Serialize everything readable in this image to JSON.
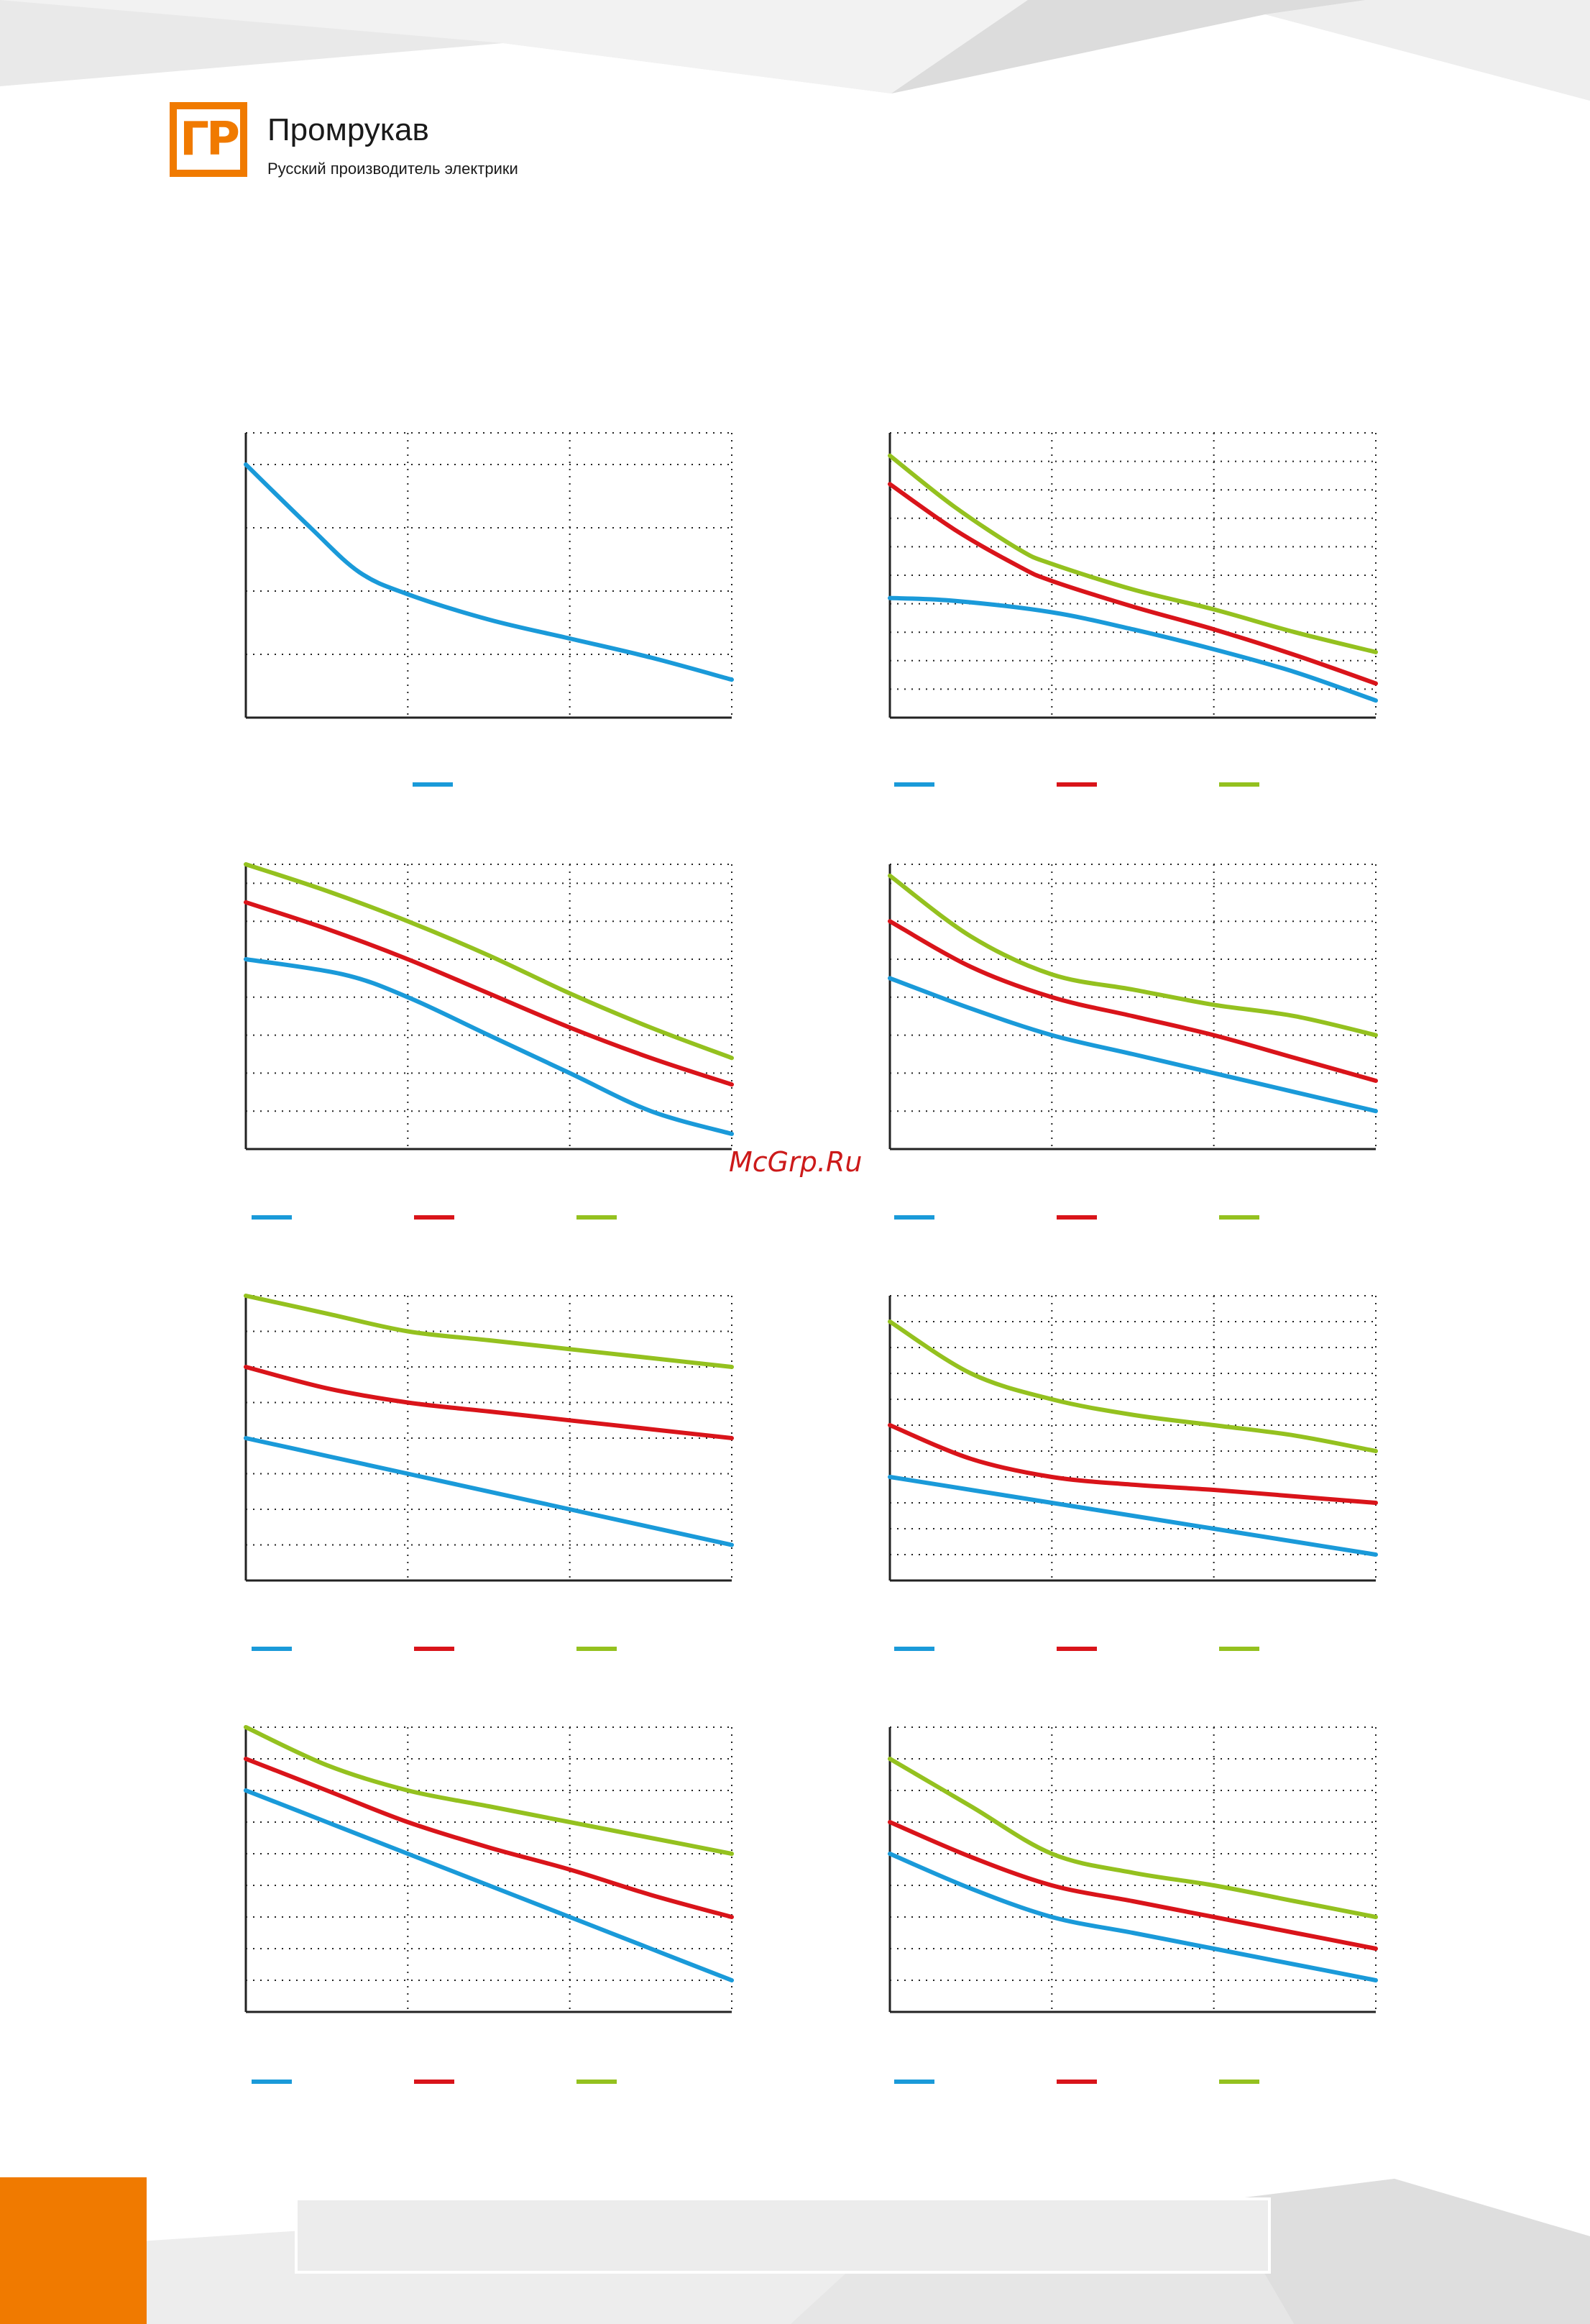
{
  "brand": {
    "logo_text": "ГР",
    "name": "Промрукав",
    "tagline": "Русский производитель электрики"
  },
  "watermark": "McGrp.Ru",
  "colors": {
    "accent": "#f07a00",
    "series_1": "#1a9ad9",
    "series_2": "#d9141a",
    "series_3": "#94c11f",
    "grid": "#222222",
    "axis": "#222222"
  },
  "chart_data": [
    {
      "type": "line",
      "ylim": [
        0,
        4.5
      ],
      "xlim": [
        0,
        3
      ],
      "grid": true,
      "legend": "bottom",
      "series": [
        {
          "color": "#1a9ad9",
          "points": [
            [
              0,
              4.0
            ],
            [
              0.4,
              3.0
            ],
            [
              0.7,
              2.3
            ],
            [
              1,
              1.95
            ],
            [
              1.5,
              1.55
            ],
            [
              2,
              1.25
            ],
            [
              2.5,
              0.95
            ],
            [
              3,
              0.6
            ]
          ]
        }
      ]
    },
    {
      "type": "line",
      "ylim": [
        0,
        10
      ],
      "xlim": [
        0,
        3
      ],
      "grid": true,
      "legend": "bottom",
      "series": [
        {
          "color": "#1a9ad9",
          "points": [
            [
              0,
              4.2
            ],
            [
              0.4,
              4.1
            ],
            [
              1,
              3.7
            ],
            [
              1.5,
              3.1
            ],
            [
              2,
              2.4
            ],
            [
              2.5,
              1.6
            ],
            [
              3,
              0.6
            ]
          ]
        },
        {
          "color": "#d9141a",
          "points": [
            [
              0,
              8.2
            ],
            [
              0.4,
              6.6
            ],
            [
              0.8,
              5.3
            ],
            [
              1,
              4.8
            ],
            [
              1.5,
              3.9
            ],
            [
              2,
              3.1
            ],
            [
              2.5,
              2.2
            ],
            [
              3,
              1.2
            ]
          ]
        },
        {
          "color": "#94c11f",
          "points": [
            [
              0,
              9.2
            ],
            [
              0.4,
              7.4
            ],
            [
              0.8,
              5.9
            ],
            [
              1,
              5.4
            ],
            [
              1.5,
              4.5
            ],
            [
              2,
              3.8
            ],
            [
              2.5,
              3.0
            ],
            [
              3,
              2.3
            ]
          ]
        }
      ]
    },
    {
      "type": "line",
      "ylim": [
        0,
        7.5
      ],
      "xlim": [
        0,
        3
      ],
      "grid": true,
      "legend": "bottom",
      "series": [
        {
          "color": "#1a9ad9",
          "points": [
            [
              0,
              5.0
            ],
            [
              0.6,
              4.6
            ],
            [
              1,
              4.0
            ],
            [
              1.5,
              3.0
            ],
            [
              2,
              2.0
            ],
            [
              2.5,
              1.0
            ],
            [
              3,
              0.4
            ]
          ]
        },
        {
          "color": "#d9141a",
          "points": [
            [
              0,
              6.5
            ],
            [
              0.5,
              5.8
            ],
            [
              1,
              5.0
            ],
            [
              1.5,
              4.1
            ],
            [
              2,
              3.2
            ],
            [
              2.5,
              2.4
            ],
            [
              3,
              1.7
            ]
          ]
        },
        {
          "color": "#94c11f",
          "points": [
            [
              0,
              7.5
            ],
            [
              0.5,
              6.8
            ],
            [
              1,
              6.0
            ],
            [
              1.5,
              5.1
            ],
            [
              2,
              4.1
            ],
            [
              2.5,
              3.2
            ],
            [
              3,
              2.4
            ]
          ]
        }
      ]
    },
    {
      "type": "line",
      "ylim": [
        0,
        7.5
      ],
      "xlim": [
        0,
        3
      ],
      "grid": true,
      "legend": "bottom",
      "series": [
        {
          "color": "#1a9ad9",
          "points": [
            [
              0,
              4.5
            ],
            [
              0.5,
              3.7
            ],
            [
              1,
              3.0
            ],
            [
              1.5,
              2.5
            ],
            [
              2,
              2.0
            ],
            [
              2.5,
              1.5
            ],
            [
              3,
              1.0
            ]
          ]
        },
        {
          "color": "#d9141a",
          "points": [
            [
              0,
              6.0
            ],
            [
              0.5,
              4.8
            ],
            [
              1,
              4.0
            ],
            [
              1.5,
              3.5
            ],
            [
              2,
              3.0
            ],
            [
              2.5,
              2.4
            ],
            [
              3,
              1.8
            ]
          ]
        },
        {
          "color": "#94c11f",
          "points": [
            [
              0,
              7.2
            ],
            [
              0.5,
              5.6
            ],
            [
              1,
              4.6
            ],
            [
              1.5,
              4.2
            ],
            [
              2,
              3.8
            ],
            [
              2.5,
              3.5
            ],
            [
              3,
              3.0
            ]
          ]
        }
      ]
    },
    {
      "type": "line",
      "ylim": [
        0,
        8
      ],
      "xlim": [
        0,
        3
      ],
      "grid": true,
      "legend": "bottom",
      "series": [
        {
          "color": "#1a9ad9",
          "points": [
            [
              0,
              4.0
            ],
            [
              0.5,
              3.5
            ],
            [
              1,
              3.0
            ],
            [
              1.5,
              2.5
            ],
            [
              2,
              2.0
            ],
            [
              2.5,
              1.5
            ],
            [
              3,
              1.0
            ]
          ]
        },
        {
          "color": "#d9141a",
          "points": [
            [
              0,
              6.0
            ],
            [
              0.5,
              5.4
            ],
            [
              1,
              5.0
            ],
            [
              1.5,
              4.75
            ],
            [
              2,
              4.5
            ],
            [
              2.5,
              4.25
            ],
            [
              3,
              4.0
            ]
          ]
        },
        {
          "color": "#94c11f",
          "points": [
            [
              0,
              8.0
            ],
            [
              0.5,
              7.5
            ],
            [
              1,
              7.0
            ],
            [
              1.5,
              6.75
            ],
            [
              2,
              6.5
            ],
            [
              2.5,
              6.25
            ],
            [
              3,
              6.0
            ]
          ]
        }
      ]
    },
    {
      "type": "line",
      "ylim": [
        0,
        11
      ],
      "xlim": [
        0,
        3
      ],
      "grid": true,
      "legend": "bottom",
      "series": [
        {
          "color": "#1a9ad9",
          "points": [
            [
              0,
              4.0
            ],
            [
              0.5,
              3.5
            ],
            [
              1,
              3.0
            ],
            [
              1.5,
              2.5
            ],
            [
              2,
              2.0
            ],
            [
              2.5,
              1.5
            ],
            [
              3,
              1.0
            ]
          ]
        },
        {
          "color": "#d9141a",
          "points": [
            [
              0,
              6.0
            ],
            [
              0.5,
              4.7
            ],
            [
              1,
              4.0
            ],
            [
              1.5,
              3.7
            ],
            [
              2,
              3.5
            ],
            [
              2.5,
              3.25
            ],
            [
              3,
              3.0
            ]
          ]
        },
        {
          "color": "#94c11f",
          "points": [
            [
              0,
              10.0
            ],
            [
              0.5,
              8.0
            ],
            [
              1,
              7.0
            ],
            [
              1.5,
              6.4
            ],
            [
              2,
              6.0
            ],
            [
              2.5,
              5.6
            ],
            [
              3,
              5.0
            ]
          ]
        }
      ]
    },
    {
      "type": "line",
      "ylim": [
        0,
        9
      ],
      "xlim": [
        0,
        3
      ],
      "grid": true,
      "legend": "bottom",
      "series": [
        {
          "color": "#1a9ad9",
          "points": [
            [
              0,
              7.0
            ],
            [
              0.5,
              6.0
            ],
            [
              1,
              5.0
            ],
            [
              1.5,
              4.0
            ],
            [
              2,
              3.0
            ],
            [
              2.5,
              2.0
            ],
            [
              3,
              1.0
            ]
          ]
        },
        {
          "color": "#d9141a",
          "points": [
            [
              0,
              8.0
            ],
            [
              0.5,
              7.0
            ],
            [
              1,
              6.0
            ],
            [
              1.5,
              5.2
            ],
            [
              2,
              4.5
            ],
            [
              2.5,
              3.7
            ],
            [
              3,
              3.0
            ]
          ]
        },
        {
          "color": "#94c11f",
          "points": [
            [
              0,
              9.0
            ],
            [
              0.5,
              7.8
            ],
            [
              1,
              7.0
            ],
            [
              1.5,
              6.5
            ],
            [
              2,
              6.0
            ],
            [
              2.5,
              5.5
            ],
            [
              3,
              5.0
            ]
          ]
        }
      ]
    },
    {
      "type": "line",
      "ylim": [
        0,
        9
      ],
      "xlim": [
        0,
        3
      ],
      "grid": true,
      "legend": "bottom",
      "series": [
        {
          "color": "#1a9ad9",
          "points": [
            [
              0,
              5.0
            ],
            [
              0.5,
              3.9
            ],
            [
              1,
              3.0
            ],
            [
              1.5,
              2.5
            ],
            [
              2,
              2.0
            ],
            [
              2.5,
              1.5
            ],
            [
              3,
              1.0
            ]
          ]
        },
        {
          "color": "#d9141a",
          "points": [
            [
              0,
              6.0
            ],
            [
              0.5,
              4.9
            ],
            [
              1,
              4.0
            ],
            [
              1.5,
              3.5
            ],
            [
              2,
              3.0
            ],
            [
              2.5,
              2.5
            ],
            [
              3,
              2.0
            ]
          ]
        },
        {
          "color": "#94c11f",
          "points": [
            [
              0,
              8.0
            ],
            [
              0.5,
              6.5
            ],
            [
              1,
              5.0
            ],
            [
              1.5,
              4.4
            ],
            [
              2,
              4.0
            ],
            [
              2.5,
              3.5
            ],
            [
              3,
              3.0
            ]
          ]
        }
      ]
    }
  ]
}
